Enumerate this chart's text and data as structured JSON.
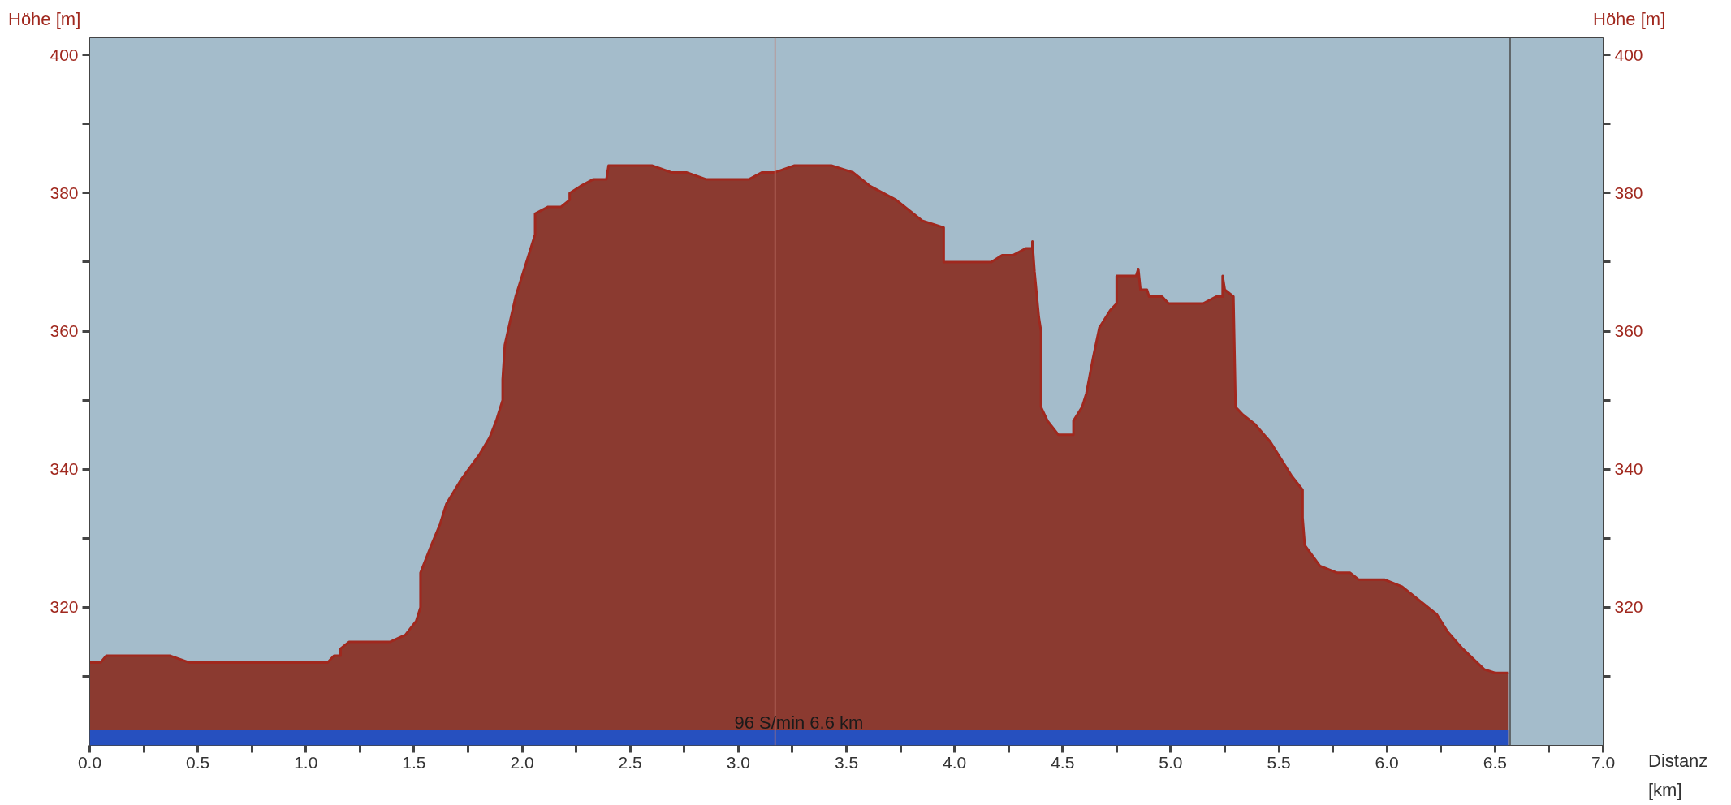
{
  "chart_data": {
    "type": "area",
    "ylabel": "Höhe  [m]",
    "y2label": "Höhe  [m]",
    "xlabel": "Distanz [km]",
    "xlim": [
      0,
      7
    ],
    "ylim": [
      300,
      402.5
    ],
    "y2lim": [
      300,
      402.5
    ],
    "xticks": [
      {
        "value": 0,
        "label": "0.0"
      },
      {
        "value": 0.25,
        "label": null
      },
      {
        "value": 0.5,
        "label": "0.5"
      },
      {
        "value": 0.75,
        "label": null
      },
      {
        "value": 1,
        "label": "1.0"
      },
      {
        "value": 1.25,
        "label": null
      },
      {
        "value": 1.5,
        "label": "1.5"
      },
      {
        "value": 1.75,
        "label": null
      },
      {
        "value": 2,
        "label": "2.0"
      },
      {
        "value": 2.25,
        "label": null
      },
      {
        "value": 2.5,
        "label": "2.5"
      },
      {
        "value": 2.75,
        "label": null
      },
      {
        "value": 3,
        "label": "3.0"
      },
      {
        "value": 3.25,
        "label": null
      },
      {
        "value": 3.5,
        "label": "3.5"
      },
      {
        "value": 3.75,
        "label": null
      },
      {
        "value": 4,
        "label": "4.0"
      },
      {
        "value": 4.25,
        "label": null
      },
      {
        "value": 4.5,
        "label": "4.5"
      },
      {
        "value": 4.75,
        "label": null
      },
      {
        "value": 5,
        "label": "5.0"
      },
      {
        "value": 5.25,
        "label": null
      },
      {
        "value": 5.5,
        "label": "5.5"
      },
      {
        "value": 5.75,
        "label": null
      },
      {
        "value": 6,
        "label": "6.0"
      },
      {
        "value": 6.25,
        "label": null
      },
      {
        "value": 6.5,
        "label": "6.5"
      },
      {
        "value": 6.75,
        "label": null
      },
      {
        "value": 7,
        "label": "7.0"
      }
    ],
    "yticks": [
      {
        "value": 310,
        "label": null
      },
      320,
      {
        "value": 330,
        "label": null
      },
      340,
      {
        "value": 350,
        "label": null
      },
      360,
      {
        "value": 370,
        "label": null
      },
      380,
      {
        "value": 390,
        "label": null
      },
      400
    ],
    "y2ticks": [
      {
        "value": 310,
        "label": null
      },
      320,
      {
        "value": 330,
        "label": null
      },
      340,
      {
        "value": 350,
        "label": null
      },
      360,
      {
        "value": 370,
        "label": null
      },
      380,
      {
        "value": 390,
        "label": null
      },
      400
    ],
    "series": [
      {
        "color": "#8b3a30",
        "x": [
          0,
          0.05,
          0.077,
          0.37,
          0.46,
          1.1,
          1.13,
          1.16,
          1.16,
          1.2,
          1.39,
          1.46,
          1.51,
          1.53,
          1.53,
          1.58,
          1.62,
          1.65,
          1.72,
          1.8,
          1.85,
          1.88,
          1.91,
          1.91,
          1.92,
          1.97,
          2.01,
          2.06,
          2.06,
          2.12,
          2.18,
          2.22,
          2.22,
          2.27,
          2.33,
          2.39,
          2.4,
          2.6,
          2.69,
          2.76,
          2.85,
          3.05,
          3.11,
          3.17,
          3.26,
          3.43,
          3.53,
          3.61,
          3.73,
          3.85,
          3.95,
          3.95,
          4.17,
          4.22,
          4.27,
          4.33,
          4.36,
          4.36,
          4.37,
          4.39,
          4.4,
          4.4,
          4.43,
          4.48,
          4.55,
          4.55,
          4.59,
          4.61,
          4.64,
          4.67,
          4.72,
          4.75,
          4.75,
          4.84,
          4.85,
          4.86,
          4.89,
          4.9,
          4.96,
          4.99,
          5.15,
          5.21,
          5.24,
          5.24,
          5.25,
          5.29,
          5.3,
          5.33,
          5.39,
          5.46,
          5.52,
          5.56,
          5.61,
          5.61,
          5.62,
          5.69,
          5.77,
          5.83,
          5.87,
          5.99,
          6.07,
          6.23,
          6.28,
          6.35,
          6.4,
          6.45,
          6.5,
          6.56
        ],
        "values": [
          312,
          312,
          313,
          313,
          312,
          312,
          313,
          313,
          314,
          315,
          315,
          316,
          318,
          320,
          325,
          329,
          332,
          335,
          338.6,
          342,
          344.6,
          347,
          350,
          353,
          358,
          365,
          369,
          374,
          377,
          378,
          378,
          379,
          380,
          381,
          382,
          382,
          384,
          384,
          383,
          383,
          382,
          382,
          383,
          383,
          384,
          384,
          383,
          381,
          379,
          376,
          375,
          370,
          370,
          371,
          371,
          372,
          372,
          373,
          368.6,
          362,
          360,
          349,
          347,
          345,
          345,
          347,
          349,
          351,
          356,
          360.5,
          363,
          364,
          368,
          368,
          369,
          366,
          366,
          365,
          365,
          364,
          364,
          365,
          365,
          368,
          366,
          365,
          349,
          348,
          346.5,
          344,
          341,
          339,
          337,
          333,
          329,
          326,
          325,
          325,
          324,
          324,
          323,
          319,
          316.5,
          314,
          312.5,
          311,
          310.5,
          310.5
        ]
      }
    ],
    "ref_lines": [
      {
        "axis": "x",
        "value": 3.17,
        "color": "#c87a6e"
      },
      {
        "axis": "x",
        "value": 6.57,
        "color": "#4a4a4a"
      }
    ],
    "bands": [
      {
        "axis": "y",
        "from": 300,
        "to": 302.2,
        "color": "#2650bf"
      }
    ],
    "annotations": [
      "96 S/min 6.6 km"
    ]
  }
}
